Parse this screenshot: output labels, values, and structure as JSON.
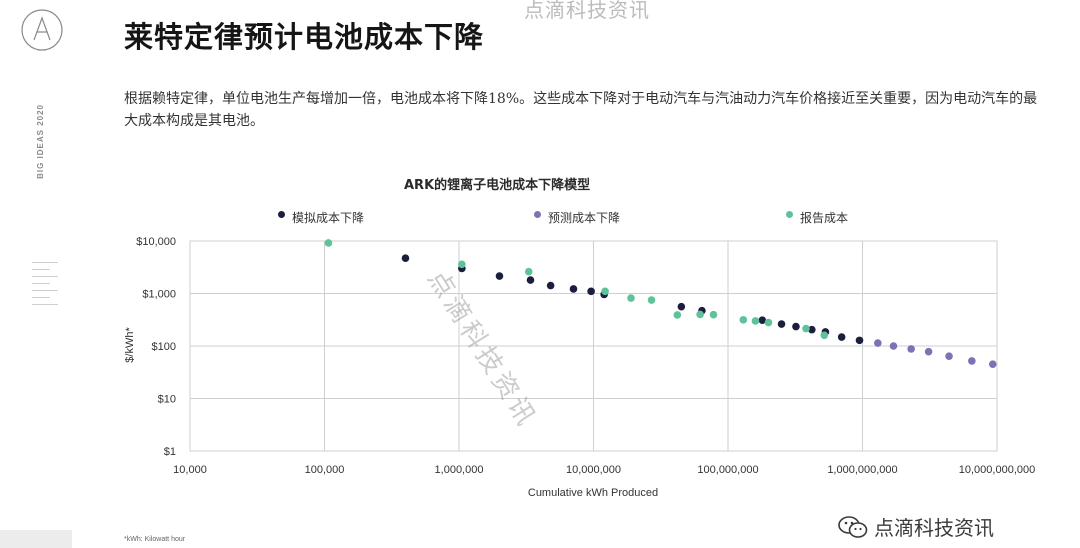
{
  "side_label": "BIG IDEAS 2020",
  "top_watermark": "点滴科技资讯",
  "title": "莱特定律预计电池成本下降",
  "body": "根据赖特定律，单位电池生产每增加一倍，电池成本将下降18%。这些成本下降对于电动汽车与汽油动力汽车价格接近至关重要，因为电动汽车的最大成本构成是其电池。",
  "diagonal_watermark": "点滴科技资讯",
  "bottom_watermark": "点滴科技资讯",
  "footnote": "*kWh: Kilowatt hour",
  "colors": {
    "simulated": "#1b1e3d",
    "forecast": "#7b73b8",
    "reported": "#5fc39a",
    "grid": "#cfcfcf"
  },
  "chart_data": {
    "type": "scatter",
    "title": "ARK的锂离子电池成本下降模型",
    "xlabel": "Cumulative kWh Produced",
    "ylabel": "$/kWh*",
    "x_scale": "log",
    "y_scale": "log",
    "xlim": [
      10000,
      10000000000
    ],
    "ylim": [
      1,
      10000
    ],
    "x_ticks": [
      {
        "value": 10000,
        "label": "10,000"
      },
      {
        "value": 100000,
        "label": "100,000"
      },
      {
        "value": 1000000,
        "label": "1,000,000"
      },
      {
        "value": 10000000,
        "label": "10,000,000"
      },
      {
        "value": 100000000,
        "label": "100,000,000"
      },
      {
        "value": 1000000000,
        "label": "1,000,000,000"
      },
      {
        "value": 10000000000,
        "label": "10,000,000,000"
      }
    ],
    "y_ticks": [
      {
        "value": 10000,
        "label": "$10,000"
      },
      {
        "value": 1000,
        "label": "$1,000"
      },
      {
        "value": 100,
        "label": "$100"
      },
      {
        "value": 10,
        "label": "$10"
      },
      {
        "value": 1,
        "label": "$1"
      }
    ],
    "grid": true,
    "legend_position": "top",
    "series": [
      {
        "name": "模拟成本下降",
        "color_key": "simulated",
        "points": [
          [
            400000,
            4700
          ],
          [
            1050000,
            3000
          ],
          [
            2000000,
            2150
          ],
          [
            3400000,
            1800
          ],
          [
            4800000,
            1420
          ],
          [
            7100000,
            1220
          ],
          [
            9600000,
            1100
          ],
          [
            12000000,
            960
          ],
          [
            45000000,
            560
          ],
          [
            64000000,
            470
          ],
          [
            180000000,
            310
          ],
          [
            250000000,
            262
          ],
          [
            320000000,
            235
          ],
          [
            420000000,
            205
          ],
          [
            530000000,
            185
          ],
          [
            700000000,
            148
          ],
          [
            950000000,
            128
          ]
        ]
      },
      {
        "name": "预测成本下降",
        "color_key": "forecast",
        "points": [
          [
            1300000000,
            114
          ],
          [
            1700000000,
            100
          ],
          [
            2300000000,
            88
          ],
          [
            3100000000,
            78
          ],
          [
            4400000000,
            64
          ],
          [
            6500000000,
            52
          ],
          [
            9300000000,
            45
          ]
        ]
      },
      {
        "name": "报告成本",
        "color_key": "reported",
        "points": [
          [
            107000,
            9200
          ],
          [
            1050000,
            3600
          ],
          [
            3300000,
            2600
          ],
          [
            12200000,
            1100
          ],
          [
            19000000,
            820
          ],
          [
            27000000,
            750
          ],
          [
            42000000,
            390
          ],
          [
            62000000,
            400
          ],
          [
            78000000,
            395
          ],
          [
            130000000,
            315
          ],
          [
            160000000,
            300
          ],
          [
            200000000,
            280
          ],
          [
            380000000,
            215
          ],
          [
            520000000,
            160
          ]
        ]
      }
    ]
  }
}
